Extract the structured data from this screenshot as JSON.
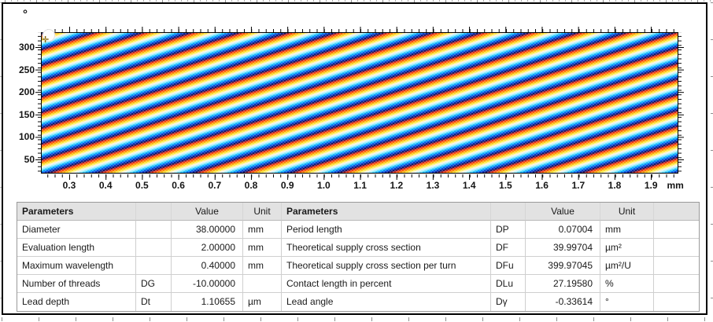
{
  "icons": {
    "mouse_cursor": "✛"
  },
  "chart": {
    "y_axis_unit_label": "°",
    "x_axis_unit_label": "mm"
  },
  "chart_data": {
    "type": "heatmap",
    "title": "",
    "xlabel": "mm",
    "ylabel": "°",
    "x_tick_labels": [
      "0.3",
      "0.4",
      "0.5",
      "0.6",
      "0.7",
      "0.8",
      "0.9",
      "1.0",
      "1.1",
      "1.2",
      "1.3",
      "1.4",
      "1.5",
      "1.6",
      "1.7",
      "1.8",
      "1.9"
    ],
    "x_unit_suffix": "mm",
    "y_tick_labels": [
      "50",
      "100",
      "150",
      "200",
      "250",
      "300"
    ],
    "xlim": [
      0.22,
      1.97
    ],
    "ylim": [
      10,
      330
    ],
    "grid": false,
    "pattern": {
      "kind": "diagonal rainbow lead/thread fringes on unrolled cylinder surface",
      "fringe_rise_direction": "up-right",
      "fringe_angle_deg": 18,
      "vertical_fringe_period_deg": 33,
      "colormap_cycle": [
        "#0c0a60",
        "#0046e0",
        "#00b4ff",
        "#9cf2ff",
        "#fff3ec",
        "#ffef3c",
        "#ff9c00",
        "#f93010"
      ]
    }
  },
  "table": {
    "left": {
      "headers": {
        "parameters": "Parameters",
        "symbol": "",
        "value": "Value",
        "unit": "Unit"
      },
      "rows": [
        {
          "label": "Diameter",
          "symbol": "",
          "value": "38.00000",
          "unit": "mm"
        },
        {
          "label": "Evaluation length",
          "symbol": "",
          "value": "2.00000",
          "unit": "mm"
        },
        {
          "label": "Maximum wavelength",
          "symbol": "",
          "value": "0.40000",
          "unit": "mm"
        },
        {
          "label": "Number of threads",
          "symbol": "DG",
          "value": "-10.00000",
          "unit": ""
        },
        {
          "label": "Lead depth",
          "symbol": "Dt",
          "value": "1.10655",
          "unit": "µm"
        }
      ]
    },
    "right": {
      "headers": {
        "parameters": "Parameters",
        "symbol": "",
        "value": "Value",
        "unit": "Unit",
        "extra": ""
      },
      "rows": [
        {
          "label": "Period length",
          "symbol": "DP",
          "value": "0.07004",
          "unit": "mm"
        },
        {
          "label": "Theoretical supply cross section",
          "symbol": "DF",
          "value": "39.99704",
          "unit": "µm²"
        },
        {
          "label": "Theoretical supply cross section per turn",
          "symbol": "DFu",
          "value": "399.97045",
          "unit": "µm²/U"
        },
        {
          "label": "Contact length in percent",
          "symbol": "DLu",
          "value": "27.19580",
          "unit": "%"
        },
        {
          "label": "Lead angle",
          "symbol": "Dγ",
          "value": "-0.33614",
          "unit": "°"
        }
      ]
    }
  }
}
